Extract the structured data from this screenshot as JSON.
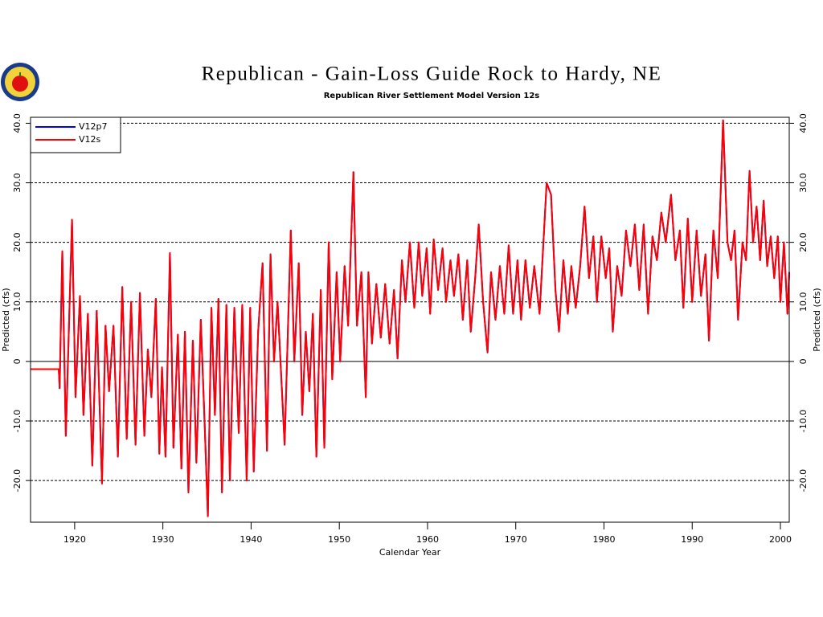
{
  "chart_data": {
    "type": "line",
    "title": "Republican - Gain-Loss Guide Rock to Hardy, NE",
    "subtitle": "Republican River Settlement Model Version 12s",
    "x_label": "Calendar Year",
    "y_label": "Predicted (cfs)",
    "y2_label": "Predicted (cfs)",
    "xlim": [
      1915,
      2001
    ],
    "xticks": [
      1920,
      1930,
      1940,
      1950,
      1960,
      1970,
      1980,
      1990,
      2000
    ],
    "ylim": [
      -27,
      41
    ],
    "yticks": [
      {
        "value": -20,
        "label": "-20.0"
      },
      {
        "value": -10,
        "label": "-10.0"
      },
      0,
      {
        "value": 10,
        "label": "10.0"
      },
      {
        "value": 20,
        "label": "20.0"
      },
      {
        "value": 30,
        "label": "30.0"
      },
      {
        "value": 40,
        "label": "40.0"
      }
    ],
    "grid": true,
    "legend": "upper left",
    "x": [
      1915,
      1918.2,
      1918.3,
      1918.6,
      1919.0,
      1919.7,
      1920.1,
      1920.6,
      1921.0,
      1921.5,
      1922.0,
      1922.5,
      1923.1,
      1923.5,
      1923.9,
      1924.4,
      1924.9,
      1925.4,
      1925.9,
      1926.4,
      1926.9,
      1927.4,
      1927.9,
      1928.3,
      1928.7,
      1929.2,
      1929.6,
      1929.9,
      1930.3,
      1930.8,
      1931.2,
      1931.7,
      1932.1,
      1932.5,
      1932.9,
      1933.4,
      1933.8,
      1934.3,
      1934.7,
      1935.1,
      1935.5,
      1935.9,
      1936.3,
      1936.7,
      1937.2,
      1937.6,
      1938.1,
      1938.6,
      1939.0,
      1939.5,
      1939.9,
      1940.3,
      1940.8,
      1941.3,
      1941.8,
      1942.2,
      1942.6,
      1943.0,
      1943.4,
      1943.8,
      1944.5,
      1944.9,
      1945.4,
      1945.8,
      1946.2,
      1946.6,
      1947.0,
      1947.4,
      1947.9,
      1948.3,
      1948.8,
      1949.2,
      1949.7,
      1950.1,
      1950.6,
      1951.0,
      1951.6,
      1952.0,
      1952.5,
      1953.0,
      1953.3,
      1953.7,
      1954.2,
      1954.7,
      1955.2,
      1955.7,
      1956.2,
      1956.6,
      1957.1,
      1957.5,
      1958.0,
      1958.5,
      1959.0,
      1959.4,
      1959.9,
      1960.3,
      1960.7,
      1961.2,
      1961.7,
      1962.1,
      1962.6,
      1963.0,
      1963.5,
      1964.0,
      1964.5,
      1964.9,
      1965.4,
      1965.8,
      1966.3,
      1966.8,
      1967.2,
      1967.7,
      1968.2,
      1968.7,
      1969.2,
      1969.7,
      1970.2,
      1970.6,
      1971.1,
      1971.6,
      1972.1,
      1972.7,
      1973.5,
      1974.0,
      1974.5,
      1974.9,
      1975.4,
      1975.9,
      1976.3,
      1976.8,
      1977.3,
      1977.8,
      1978.3,
      1978.8,
      1979.2,
      1979.7,
      1980.2,
      1980.6,
      1981.0,
      1981.5,
      1982.0,
      1982.5,
      1983.0,
      1983.5,
      1984.0,
      1984.5,
      1985.0,
      1985.5,
      1986.0,
      1986.5,
      1987.0,
      1987.6,
      1988.1,
      1988.6,
      1989.0,
      1989.5,
      1990.0,
      1990.5,
      1991.0,
      1991.5,
      1991.9,
      1992.4,
      1992.9,
      1993.5,
      1994.0,
      1994.4,
      1994.8,
      1995.2,
      1995.7,
      1996.1,
      1996.5,
      1996.9,
      1997.3,
      1997.7,
      1998.1,
      1998.5,
      1998.9,
      1999.3,
      1999.7,
      2000.0,
      2000.4,
      2000.8,
      2001.0
    ],
    "series": [
      {
        "name": "V12p7",
        "color": "#0000ff",
        "values": [
          -1.3,
          -1.3,
          -4.5,
          18.5,
          -12.5,
          23.8,
          -6,
          11,
          -9,
          8,
          -17.5,
          8.5,
          -20.5,
          6,
          -5,
          6,
          -16,
          12.5,
          -13,
          10,
          -14,
          11.5,
          -12.5,
          2,
          -6,
          10.5,
          -15.5,
          -1,
          -16,
          18.2,
          -14.5,
          4.5,
          -18,
          5,
          -22,
          3.5,
          -17,
          7,
          -9,
          -26,
          9,
          -9,
          10.5,
          -22,
          9.5,
          -20,
          9,
          -12,
          9.5,
          -20,
          9,
          -18.5,
          5,
          16.5,
          -15,
          18,
          0,
          10,
          -2,
          -14,
          22,
          0,
          16.5,
          -9,
          5,
          -5,
          8,
          -16,
          12,
          -14.5,
          20,
          -3,
          15,
          0,
          16,
          6,
          31.8,
          6,
          15,
          -6,
          15,
          3,
          13,
          4,
          13,
          3,
          12,
          0.5,
          17,
          10,
          20,
          9,
          20,
          11,
          19,
          8,
          20.5,
          12,
          19,
          10,
          17,
          11,
          18,
          7,
          17,
          5,
          14,
          23,
          10,
          1.5,
          15,
          7,
          16,
          8,
          19.5,
          8,
          17,
          7,
          17,
          9,
          16,
          8,
          30,
          28,
          12,
          5,
          17,
          8,
          16,
          9,
          16,
          26,
          14,
          21,
          10,
          21,
          14,
          19,
          5,
          16,
          11,
          22,
          16,
          23,
          12,
          23,
          8,
          21,
          17,
          25,
          20,
          28,
          17,
          22,
          9,
          24,
          10,
          22,
          11,
          18,
          3.5,
          22,
          14,
          40.5,
          20,
          17,
          22,
          7,
          20,
          17,
          32,
          20,
          26,
          17,
          27,
          16,
          21,
          14,
          21,
          10,
          20,
          8,
          15
        ]
      },
      {
        "name": "V12s",
        "color": "#ff0000",
        "values": [
          -1.3,
          -1.3,
          -4.5,
          18.5,
          -12.5,
          23.8,
          -6,
          11,
          -9,
          8,
          -17.5,
          8.5,
          -20.5,
          6,
          -5,
          6,
          -16,
          12.5,
          -13,
          10,
          -14,
          11.5,
          -12.5,
          2,
          -6,
          10.5,
          -15.5,
          -1,
          -16,
          18.2,
          -14.5,
          4.5,
          -18,
          5,
          -22,
          3.5,
          -17,
          7,
          -9,
          -26,
          9,
          -9,
          10.5,
          -22,
          9.5,
          -20,
          9,
          -12,
          9.5,
          -20,
          9,
          -18.5,
          5,
          16.5,
          -15,
          18,
          0,
          10,
          -2,
          -14,
          22,
          0,
          16.5,
          -9,
          5,
          -5,
          8,
          -16,
          12,
          -14.5,
          20,
          -3,
          15,
          0,
          16,
          6,
          31.8,
          6,
          15,
          -6,
          15,
          3,
          13,
          4,
          13,
          3,
          12,
          0.5,
          17,
          10,
          20,
          9,
          20,
          11,
          19,
          8,
          20.5,
          12,
          19,
          10,
          17,
          11,
          18,
          7,
          17,
          5,
          14,
          23,
          10,
          1.5,
          15,
          7,
          16,
          8,
          19.5,
          8,
          17,
          7,
          17,
          9,
          16,
          8,
          30,
          28,
          12,
          5,
          17,
          8,
          16,
          9,
          16,
          26,
          14,
          21,
          10,
          21,
          14,
          19,
          5,
          16,
          11,
          22,
          16,
          23,
          12,
          23,
          8,
          21,
          17,
          25,
          20,
          28,
          17,
          22,
          9,
          24,
          10,
          22,
          11,
          18,
          3.5,
          22,
          14,
          40.5,
          20,
          17,
          22,
          7,
          20,
          17,
          32,
          20,
          26,
          17,
          27,
          16,
          21,
          14,
          21,
          10,
          20,
          8,
          15
        ]
      }
    ]
  }
}
